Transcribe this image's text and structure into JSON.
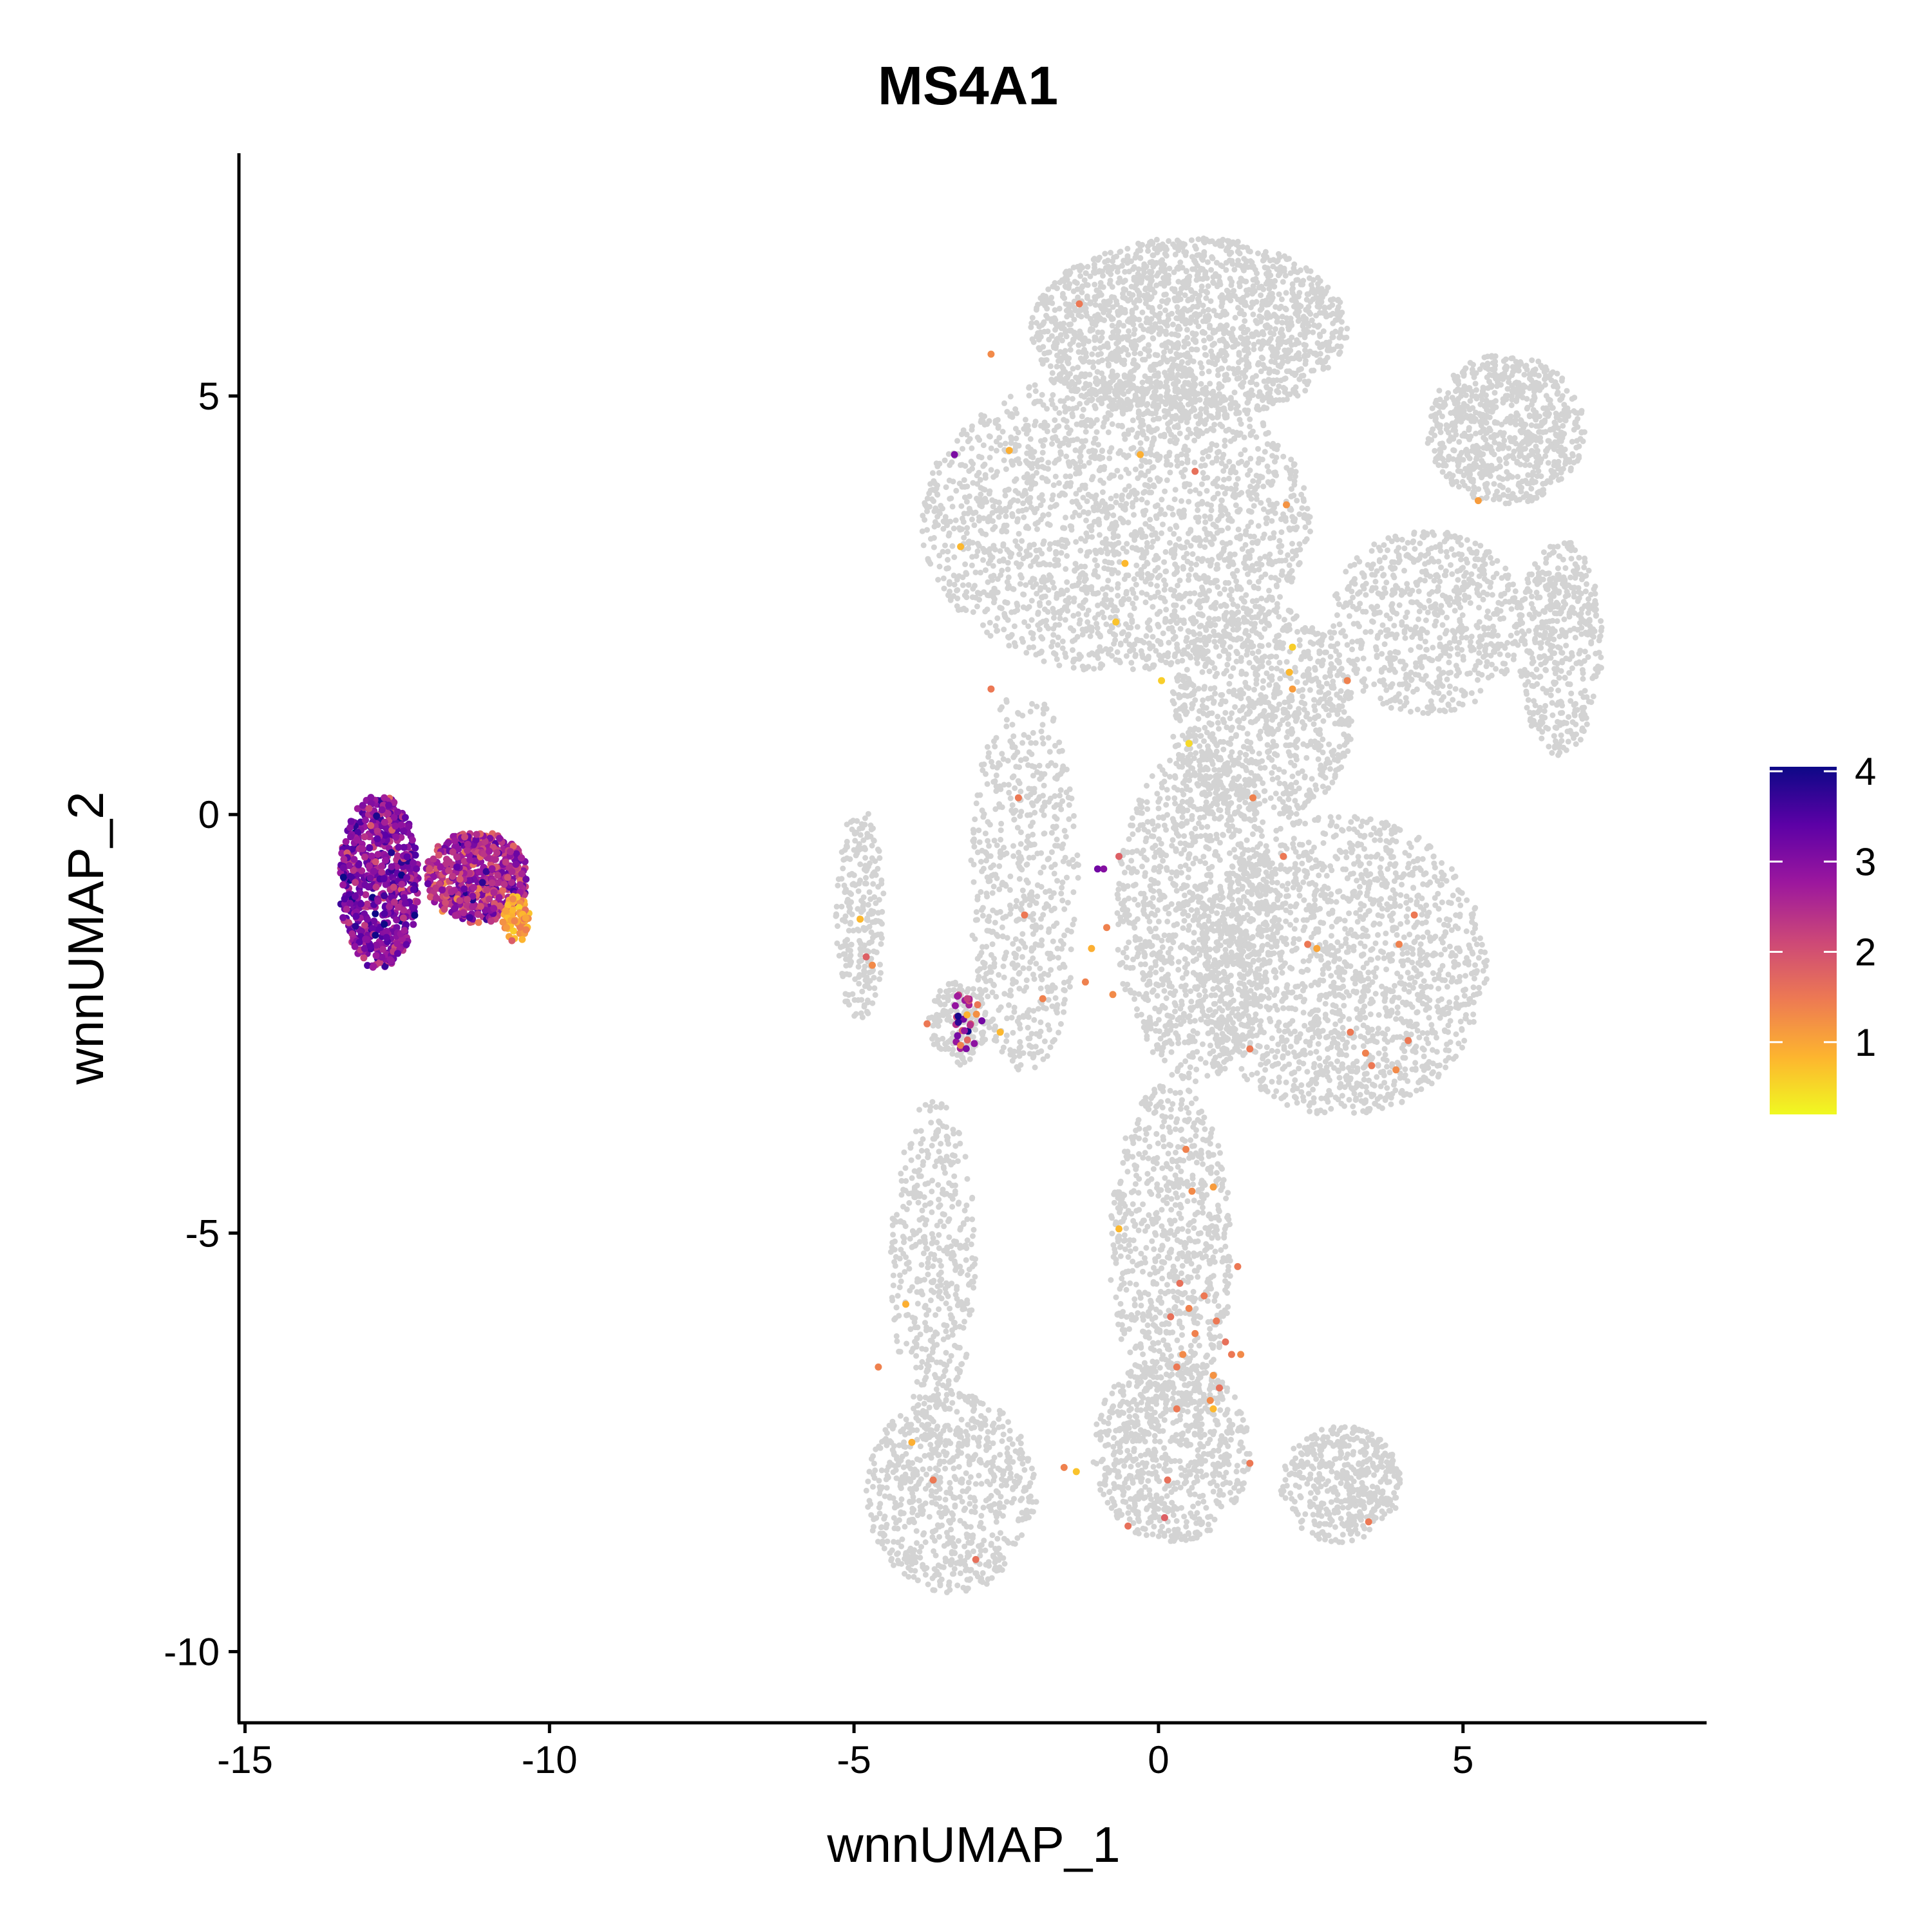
{
  "chart_data": {
    "type": "scatter",
    "title": "MS4A1",
    "xlabel": "wnnUMAP_1",
    "ylabel": "wnnUMAP_2",
    "xlim": [
      -15.1,
      9
    ],
    "ylim": [
      -10.85,
      7.9
    ],
    "x_ticks": [
      -15,
      -10,
      -5,
      0,
      5
    ],
    "x_tick_labels": [
      "-15",
      "-10",
      "-5",
      "0",
      "5"
    ],
    "y_ticks": [
      5,
      0,
      -5,
      -10
    ],
    "y_tick_labels": [
      "5",
      "0",
      "-5",
      "-10"
    ],
    "grid": false,
    "background_color": "#d3d3d3",
    "colorscale": [
      "#f0f921",
      "#fdb42f",
      "#ed7953",
      "#cc4778",
      "#9c179e",
      "#5c01a6",
      "#0d0887"
    ],
    "colorbar": {
      "ticks": [
        1,
        2,
        3,
        4
      ],
      "tick_labels": [
        "1",
        "2",
        "3",
        "4"
      ],
      "range": [
        0.2,
        4.05
      ],
      "placement": "right"
    },
    "background_clusters": [
      {
        "cx": -4.9,
        "cy": -1.2,
        "rx": 0.4,
        "ry": 1.3,
        "n": 250
      },
      {
        "cx": 0.5,
        "cy": 5.8,
        "rx": 2.6,
        "ry": 1.1,
        "n": 1800
      },
      {
        "cx": -0.7,
        "cy": 3.5,
        "rx": 3.2,
        "ry": 1.8,
        "n": 2200
      },
      {
        "cx": 1.7,
        "cy": 1.2,
        "rx": 1.5,
        "ry": 1.3,
        "n": 900
      },
      {
        "cx": 5.7,
        "cy": 4.6,
        "rx": 1.3,
        "ry": 0.9,
        "n": 800
      },
      {
        "cx": 4.4,
        "cy": 2.3,
        "rx": 1.6,
        "ry": 1.1,
        "n": 700
      },
      {
        "cx": 6.6,
        "cy": 2.0,
        "rx": 0.7,
        "ry": 1.3,
        "n": 450
      },
      {
        "cx": 3.0,
        "cy": -1.8,
        "rx": 2.4,
        "ry": 1.8,
        "n": 1700
      },
      {
        "cx": 0.6,
        "cy": -1.2,
        "rx": 1.3,
        "ry": 2.0,
        "n": 1100
      },
      {
        "cx": 0.2,
        "cy": -5.2,
        "rx": 1.0,
        "ry": 2.0,
        "n": 800
      },
      {
        "cx": 0.2,
        "cy": -7.6,
        "rx": 1.3,
        "ry": 1.1,
        "n": 750
      },
      {
        "cx": 3.0,
        "cy": -8.0,
        "rx": 1.0,
        "ry": 0.7,
        "n": 450
      },
      {
        "cx": -3.4,
        "cy": -8.1,
        "rx": 1.4,
        "ry": 1.2,
        "n": 750
      },
      {
        "cx": -3.7,
        "cy": -5.3,
        "rx": 0.7,
        "ry": 1.9,
        "n": 450
      },
      {
        "cx": -2.2,
        "cy": -0.8,
        "rx": 0.9,
        "ry": 2.3,
        "n": 600
      },
      {
        "cx": -3.3,
        "cy": -2.5,
        "rx": 0.5,
        "ry": 0.5,
        "n": 160
      }
    ],
    "expressing_clusters": [
      {
        "cx": -12.8,
        "cy": -0.8,
        "rx": 0.65,
        "ry": 1.05,
        "n": 620,
        "mean": 3.0,
        "sd": 0.45
      },
      {
        "cx": -11.2,
        "cy": -0.75,
        "rx": 0.85,
        "ry": 0.55,
        "n": 520,
        "mean": 2.6,
        "sd": 0.5
      },
      {
        "cx": -10.55,
        "cy": -1.25,
        "rx": 0.22,
        "ry": 0.28,
        "n": 70,
        "mean": 1.1,
        "sd": 0.3
      },
      {
        "cx": -3.15,
        "cy": -2.45,
        "rx": 0.25,
        "ry": 0.4,
        "n": 30,
        "mean": 2.6,
        "sd": 0.8
      }
    ],
    "expressing_points": [
      {
        "x": -1.3,
        "y": 6.1,
        "v": 1.5
      },
      {
        "x": -2.75,
        "y": 5.5,
        "v": 1.3
      },
      {
        "x": -3.35,
        "y": 4.3,
        "v": 3.1
      },
      {
        "x": -2.45,
        "y": 4.35,
        "v": 0.9
      },
      {
        "x": -0.3,
        "y": 4.3,
        "v": 0.9
      },
      {
        "x": 0.6,
        "y": 4.1,
        "v": 1.6
      },
      {
        "x": 2.1,
        "y": 3.7,
        "v": 1.2
      },
      {
        "x": 5.25,
        "y": 3.75,
        "v": 1.1
      },
      {
        "x": -3.25,
        "y": 3.2,
        "v": 0.8
      },
      {
        "x": -0.55,
        "y": 3.0,
        "v": 0.8
      },
      {
        "x": -0.7,
        "y": 2.3,
        "v": 0.7
      },
      {
        "x": 2.2,
        "y": 2.0,
        "v": 0.6
      },
      {
        "x": 2.15,
        "y": 1.7,
        "v": 0.8
      },
      {
        "x": 2.2,
        "y": 1.5,
        "v": 1.1
      },
      {
        "x": 3.1,
        "y": 1.6,
        "v": 1.4
      },
      {
        "x": -2.75,
        "y": 1.5,
        "v": 1.5
      },
      {
        "x": 0.05,
        "y": 1.6,
        "v": 0.6
      },
      {
        "x": 0.5,
        "y": 0.85,
        "v": 0.5
      },
      {
        "x": -2.3,
        "y": 0.2,
        "v": 1.5
      },
      {
        "x": 1.55,
        "y": 0.2,
        "v": 1.4
      },
      {
        "x": 2.05,
        "y": -0.5,
        "v": 1.5
      },
      {
        "x": -1.0,
        "y": -0.65,
        "v": 3.2
      },
      {
        "x": -0.9,
        "y": -0.65,
        "v": 3.0
      },
      {
        "x": -0.65,
        "y": -0.5,
        "v": 1.8
      },
      {
        "x": -4.9,
        "y": -1.25,
        "v": 0.8
      },
      {
        "x": -2.2,
        "y": -1.2,
        "v": 1.5
      },
      {
        "x": -0.85,
        "y": -1.35,
        "v": 1.4
      },
      {
        "x": 4.2,
        "y": -1.2,
        "v": 1.5
      },
      {
        "x": -4.8,
        "y": -1.7,
        "v": 1.8
      },
      {
        "x": -4.7,
        "y": -1.8,
        "v": 1.3
      },
      {
        "x": -1.1,
        "y": -1.6,
        "v": 0.9
      },
      {
        "x": 2.45,
        "y": -1.55,
        "v": 1.5
      },
      {
        "x": 2.6,
        "y": -1.6,
        "v": 1.0
      },
      {
        "x": 3.95,
        "y": -1.55,
        "v": 1.4
      },
      {
        "x": -1.9,
        "y": -2.2,
        "v": 1.4
      },
      {
        "x": -1.2,
        "y": -2.0,
        "v": 1.4
      },
      {
        "x": -0.75,
        "y": -2.15,
        "v": 1.3
      },
      {
        "x": -3.8,
        "y": -2.5,
        "v": 1.5
      },
      {
        "x": -2.6,
        "y": -2.6,
        "v": 0.8
      },
      {
        "x": 3.15,
        "y": -2.6,
        "v": 1.5
      },
      {
        "x": 4.1,
        "y": -2.7,
        "v": 1.5
      },
      {
        "x": 1.5,
        "y": -2.8,
        "v": 1.5
      },
      {
        "x": 3.4,
        "y": -2.85,
        "v": 1.4
      },
      {
        "x": 3.5,
        "y": -3.0,
        "v": 1.5
      },
      {
        "x": 3.9,
        "y": -3.05,
        "v": 1.3
      },
      {
        "x": 0.45,
        "y": -4.0,
        "v": 1.4
      },
      {
        "x": 0.55,
        "y": -4.5,
        "v": 1.3
      },
      {
        "x": 0.9,
        "y": -4.45,
        "v": 1.1
      },
      {
        "x": -0.65,
        "y": -4.95,
        "v": 0.8
      },
      {
        "x": 1.3,
        "y": -5.4,
        "v": 1.5
      },
      {
        "x": -4.15,
        "y": -5.85,
        "v": 0.9
      },
      {
        "x": 0.35,
        "y": -5.6,
        "v": 1.6
      },
      {
        "x": 0.75,
        "y": -5.75,
        "v": 1.5
      },
      {
        "x": 0.2,
        "y": -6.0,
        "v": 1.6
      },
      {
        "x": 0.5,
        "y": -5.9,
        "v": 1.4
      },
      {
        "x": 0.95,
        "y": -6.05,
        "v": 1.5
      },
      {
        "x": 0.6,
        "y": -6.2,
        "v": 1.4
      },
      {
        "x": 1.1,
        "y": -6.3,
        "v": 1.6
      },
      {
        "x": 0.4,
        "y": -6.45,
        "v": 1.3
      },
      {
        "x": 1.2,
        "y": -6.45,
        "v": 1.5
      },
      {
        "x": 1.35,
        "y": -6.45,
        "v": 1.3
      },
      {
        "x": 0.3,
        "y": -6.6,
        "v": 1.5
      },
      {
        "x": 0.9,
        "y": -6.7,
        "v": 1.2
      },
      {
        "x": 1.0,
        "y": -6.85,
        "v": 1.6
      },
      {
        "x": 0.85,
        "y": -7.0,
        "v": 1.3
      },
      {
        "x": 0.9,
        "y": -7.1,
        "v": 0.8
      },
      {
        "x": 0.3,
        "y": -7.1,
        "v": 1.5
      },
      {
        "x": -4.6,
        "y": -6.6,
        "v": 1.4
      },
      {
        "x": -4.05,
        "y": -7.5,
        "v": 0.9
      },
      {
        "x": -3.7,
        "y": -7.95,
        "v": 1.5
      },
      {
        "x": -1.55,
        "y": -7.8,
        "v": 1.4
      },
      {
        "x": -1.35,
        "y": -7.85,
        "v": 0.7
      },
      {
        "x": 0.15,
        "y": -7.95,
        "v": 1.6
      },
      {
        "x": 1.5,
        "y": -7.75,
        "v": 1.5
      },
      {
        "x": -0.5,
        "y": -8.5,
        "v": 1.6
      },
      {
        "x": 0.1,
        "y": -8.4,
        "v": 1.8
      },
      {
        "x": 3.45,
        "y": -8.45,
        "v": 1.5
      },
      {
        "x": -3.0,
        "y": -8.9,
        "v": 1.6
      }
    ]
  }
}
